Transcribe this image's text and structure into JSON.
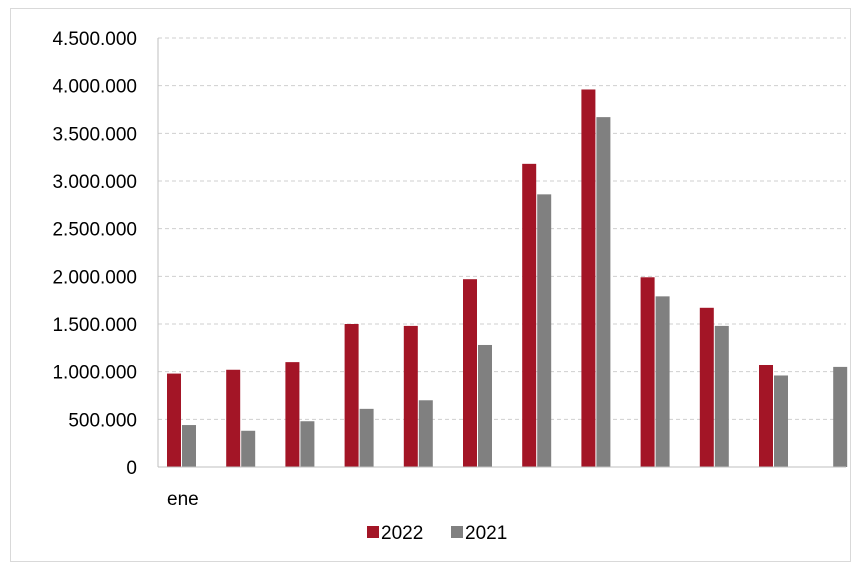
{
  "chart_data": {
    "type": "bar",
    "title": "",
    "xlabel": "",
    "ylabel": "",
    "categories": [
      "ene",
      "",
      "",
      "",
      "",
      "",
      "",
      "",
      "",
      "",
      "",
      ""
    ],
    "series": [
      {
        "name": "2022",
        "color": "#a31526",
        "values": [
          980000,
          1020000,
          1100000,
          1500000,
          1480000,
          1970000,
          3180000,
          3960000,
          1990000,
          1670000,
          1070000,
          null
        ]
      },
      {
        "name": "2021",
        "color": "#808080",
        "values": [
          440000,
          380000,
          480000,
          610000,
          700000,
          1280000,
          2860000,
          3670000,
          1790000,
          1480000,
          960000,
          1050000
        ]
      }
    ],
    "ylim": [
      0,
      4500000
    ],
    "y_ticks": [
      "0",
      "500.000",
      "1.000.000",
      "1.500.000",
      "2.000.000",
      "2.500.000",
      "3.000.000",
      "3.500.000",
      "4.000.000",
      "4.500.000"
    ],
    "y_tick_values": [
      0,
      500000,
      1000000,
      1500000,
      2000000,
      2500000,
      3000000,
      3500000,
      4000000,
      4500000
    ],
    "grid": true,
    "legend_position": "bottom-center"
  }
}
